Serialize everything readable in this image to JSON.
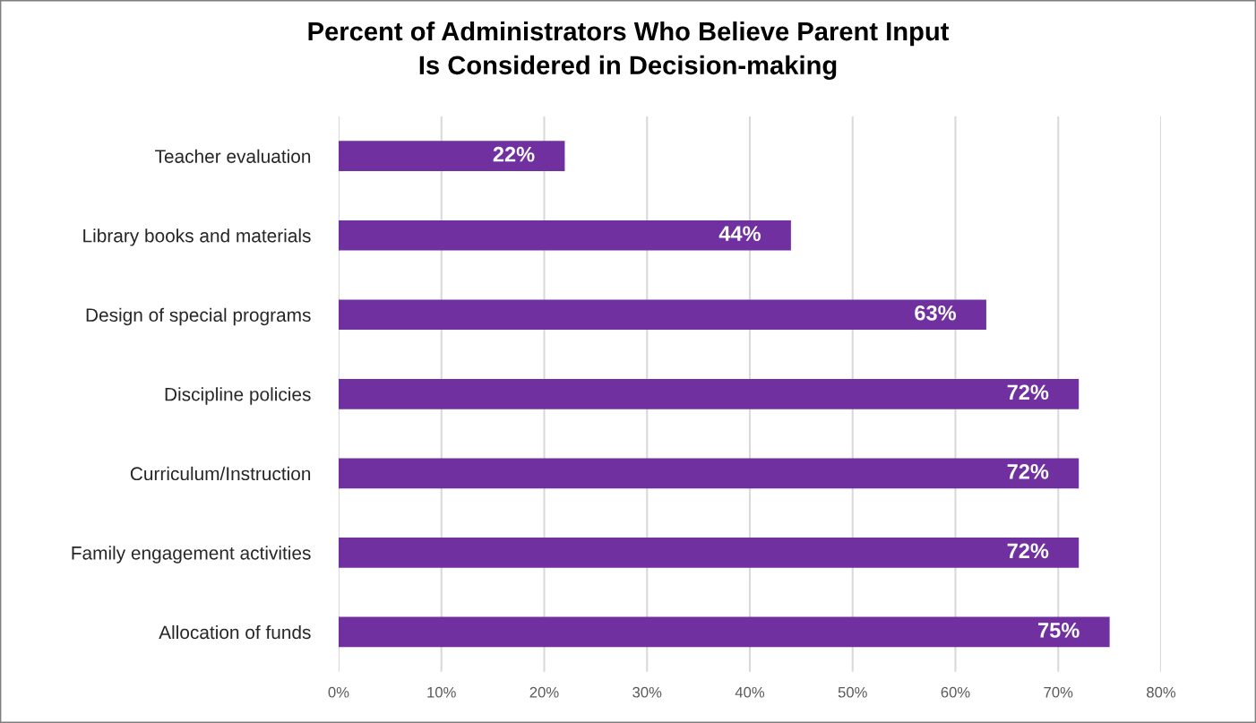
{
  "chart_data": {
    "type": "bar",
    "orientation": "horizontal",
    "title": "Percent of Administrators Who Believe Parent Input\nIs Considered in Decision-making",
    "categories": [
      "Teacher evaluation",
      "Library books and materials",
      "Design of special programs",
      "Discipline policies",
      "Curriculum/Instruction",
      "Family engagement activities",
      "Allocation of funds"
    ],
    "values": [
      22,
      44,
      63,
      72,
      72,
      72,
      75
    ],
    "value_labels": [
      "22%",
      "44%",
      "63%",
      "72%",
      "72%",
      "72%",
      "75%"
    ],
    "color": "#7030a0",
    "xlim": [
      0,
      80
    ],
    "xticks": [
      {
        "value": 0,
        "label": "0%"
      },
      {
        "value": 10,
        "label": "10%"
      },
      {
        "value": 20,
        "label": "20%"
      },
      {
        "value": 30,
        "label": "30%"
      },
      {
        "value": 40,
        "label": "40%"
      },
      {
        "value": 50,
        "label": "50%"
      },
      {
        "value": 60,
        "label": "60%"
      },
      {
        "value": 70,
        "label": "70%"
      },
      {
        "value": 80,
        "label": "80%"
      }
    ],
    "grid": "x"
  }
}
